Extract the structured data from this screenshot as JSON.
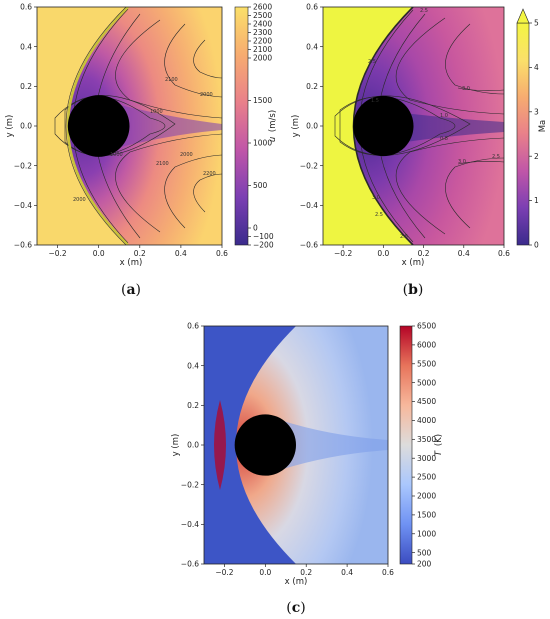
{
  "chart_data": [
    {
      "panel": "(a)",
      "panel_letter": "a",
      "type": "heatmap",
      "xlabel": "x (m)",
      "ylabel": "y (m)",
      "xlim": [
        -0.3,
        0.6
      ],
      "ylim": [
        -0.6,
        0.6
      ],
      "x_ticks": [
        "−0.2",
        "0.0",
        "0.2",
        "0.4",
        "0.6"
      ],
      "x_tick_values": [
        -0.2,
        0.0,
        0.2,
        0.4,
        0.6
      ],
      "y_ticks": [
        "0.6",
        "0.4",
        "0.2",
        "0.0",
        "−0.2",
        "−0.4",
        "−0.6"
      ],
      "y_tick_values": [
        0.6,
        0.4,
        0.2,
        0.0,
        -0.2,
        -0.4,
        -0.6
      ],
      "colorbar": {
        "label_var": "u",
        "label_unit": "(m/s)",
        "min": -200,
        "max": 2600,
        "ticks": [
          "2600",
          "2500",
          "2400",
          "2300",
          "2200",
          "2100",
          "2000",
          "1500",
          "1000",
          "500",
          "0",
          "−100",
          "−200"
        ],
        "tick_values": [
          2600,
          2500,
          2400,
          2300,
          2200,
          2100,
          2000,
          1500,
          1000,
          500,
          0,
          -100,
          -200
        ],
        "colormap": [
          "#3a2b8c",
          "#7b3fb3",
          "#c056a8",
          "#e9808a",
          "#f7ac70",
          "#fbe06a"
        ]
      },
      "contour_labels": [
        "2100",
        "2000",
        "1000",
        "1000",
        "2000",
        "2100",
        "2200",
        "2000"
      ],
      "contour_label_values": [
        2100,
        2000,
        1000,
        1000,
        2000,
        2100,
        2200,
        2000
      ],
      "free_stream_color": "#f9d86b",
      "shock_color": "#c8c23a",
      "body": {
        "shape": "circle",
        "center": [
          0.0,
          0.0
        ],
        "radius": 0.15,
        "color": "#000000"
      }
    },
    {
      "panel": "(b)",
      "panel_letter": "b",
      "type": "heatmap",
      "xlabel": "x (m)",
      "ylabel": "y (m)",
      "xlim": [
        -0.3,
        0.6
      ],
      "ylim": [
        -0.6,
        0.6
      ],
      "x_ticks": [
        "−0.2",
        "0.0",
        "0.2",
        "0.4",
        "0.6"
      ],
      "x_tick_values": [
        -0.2,
        0.0,
        0.2,
        0.4,
        0.6
      ],
      "y_ticks": [
        "0.6",
        "0.4",
        "0.2",
        "0.0",
        "−0.2",
        "−0.4",
        "−0.6"
      ],
      "y_tick_values": [
        0.6,
        0.4,
        0.2,
        0.0,
        -0.2,
        -0.4,
        -0.6
      ],
      "colorbar": {
        "label": "Ma",
        "min": 0,
        "max": 5,
        "extend": "max",
        "ticks": [
          "5",
          "4",
          "3",
          "2",
          "1",
          "0"
        ],
        "tick_values": [
          5,
          4,
          3,
          2,
          1,
          0
        ],
        "colormap": [
          "#3a2b8c",
          "#7b3fb3",
          "#c056a8",
          "#e9808a",
          "#f7ac70",
          "#fbe06a",
          "#f3f542"
        ]
      },
      "contour_labels": [
        "2.5",
        "3.0",
        "2.5",
        "1.5",
        "1.0",
        "0.8",
        "3.0",
        "2.5",
        "2.5",
        "3.0",
        "2.5"
      ],
      "contour_label_values": [
        2.5,
        3.0,
        2.5,
        1.5,
        1.0,
        0.8,
        3.0,
        2.5,
        2.5,
        3.0,
        2.5
      ],
      "free_stream_color": "#eef541",
      "body": {
        "shape": "circle",
        "center": [
          0.0,
          0.0
        ],
        "radius": 0.15,
        "color": "#000000"
      }
    },
    {
      "panel": "(c)",
      "panel_letter": "c",
      "type": "heatmap",
      "xlabel": "x (m)",
      "ylabel": "y (m)",
      "xlim": [
        -0.3,
        0.6
      ],
      "ylim": [
        -0.6,
        0.6
      ],
      "x_ticks": [
        "−0.2",
        "0.0",
        "0.2",
        "0.4",
        "0.6"
      ],
      "x_tick_values": [
        -0.2,
        0.0,
        0.2,
        0.4,
        0.6
      ],
      "y_ticks": [
        "0.6",
        "0.4",
        "0.2",
        "0.0",
        "−0.2",
        "−0.4",
        "−0.6"
      ],
      "y_tick_values": [
        0.6,
        0.4,
        0.2,
        0.0,
        -0.2,
        -0.4,
        -0.6
      ],
      "colorbar": {
        "label_var": "T",
        "label_unit": "(K)",
        "min": 200,
        "max": 6500,
        "ticks": [
          "6500",
          "6000",
          "5500",
          "5000",
          "4500",
          "4000",
          "3500",
          "3000",
          "2500",
          "2000",
          "1500",
          "1000",
          "500",
          "200"
        ],
        "tick_values": [
          6500,
          6000,
          5500,
          5000,
          4500,
          4000,
          3500,
          3000,
          2500,
          2000,
          1500,
          1000,
          500,
          200
        ],
        "colormap": [
          "#3b4cc0",
          "#6f92f3",
          "#aac7fd",
          "#dddcdc",
          "#f7b89c",
          "#e7745b",
          "#b40426"
        ]
      },
      "free_stream_color": "#3d55c6",
      "body": {
        "shape": "circle",
        "center": [
          0.0,
          0.0
        ],
        "radius": 0.15,
        "color": "#000000"
      }
    }
  ]
}
